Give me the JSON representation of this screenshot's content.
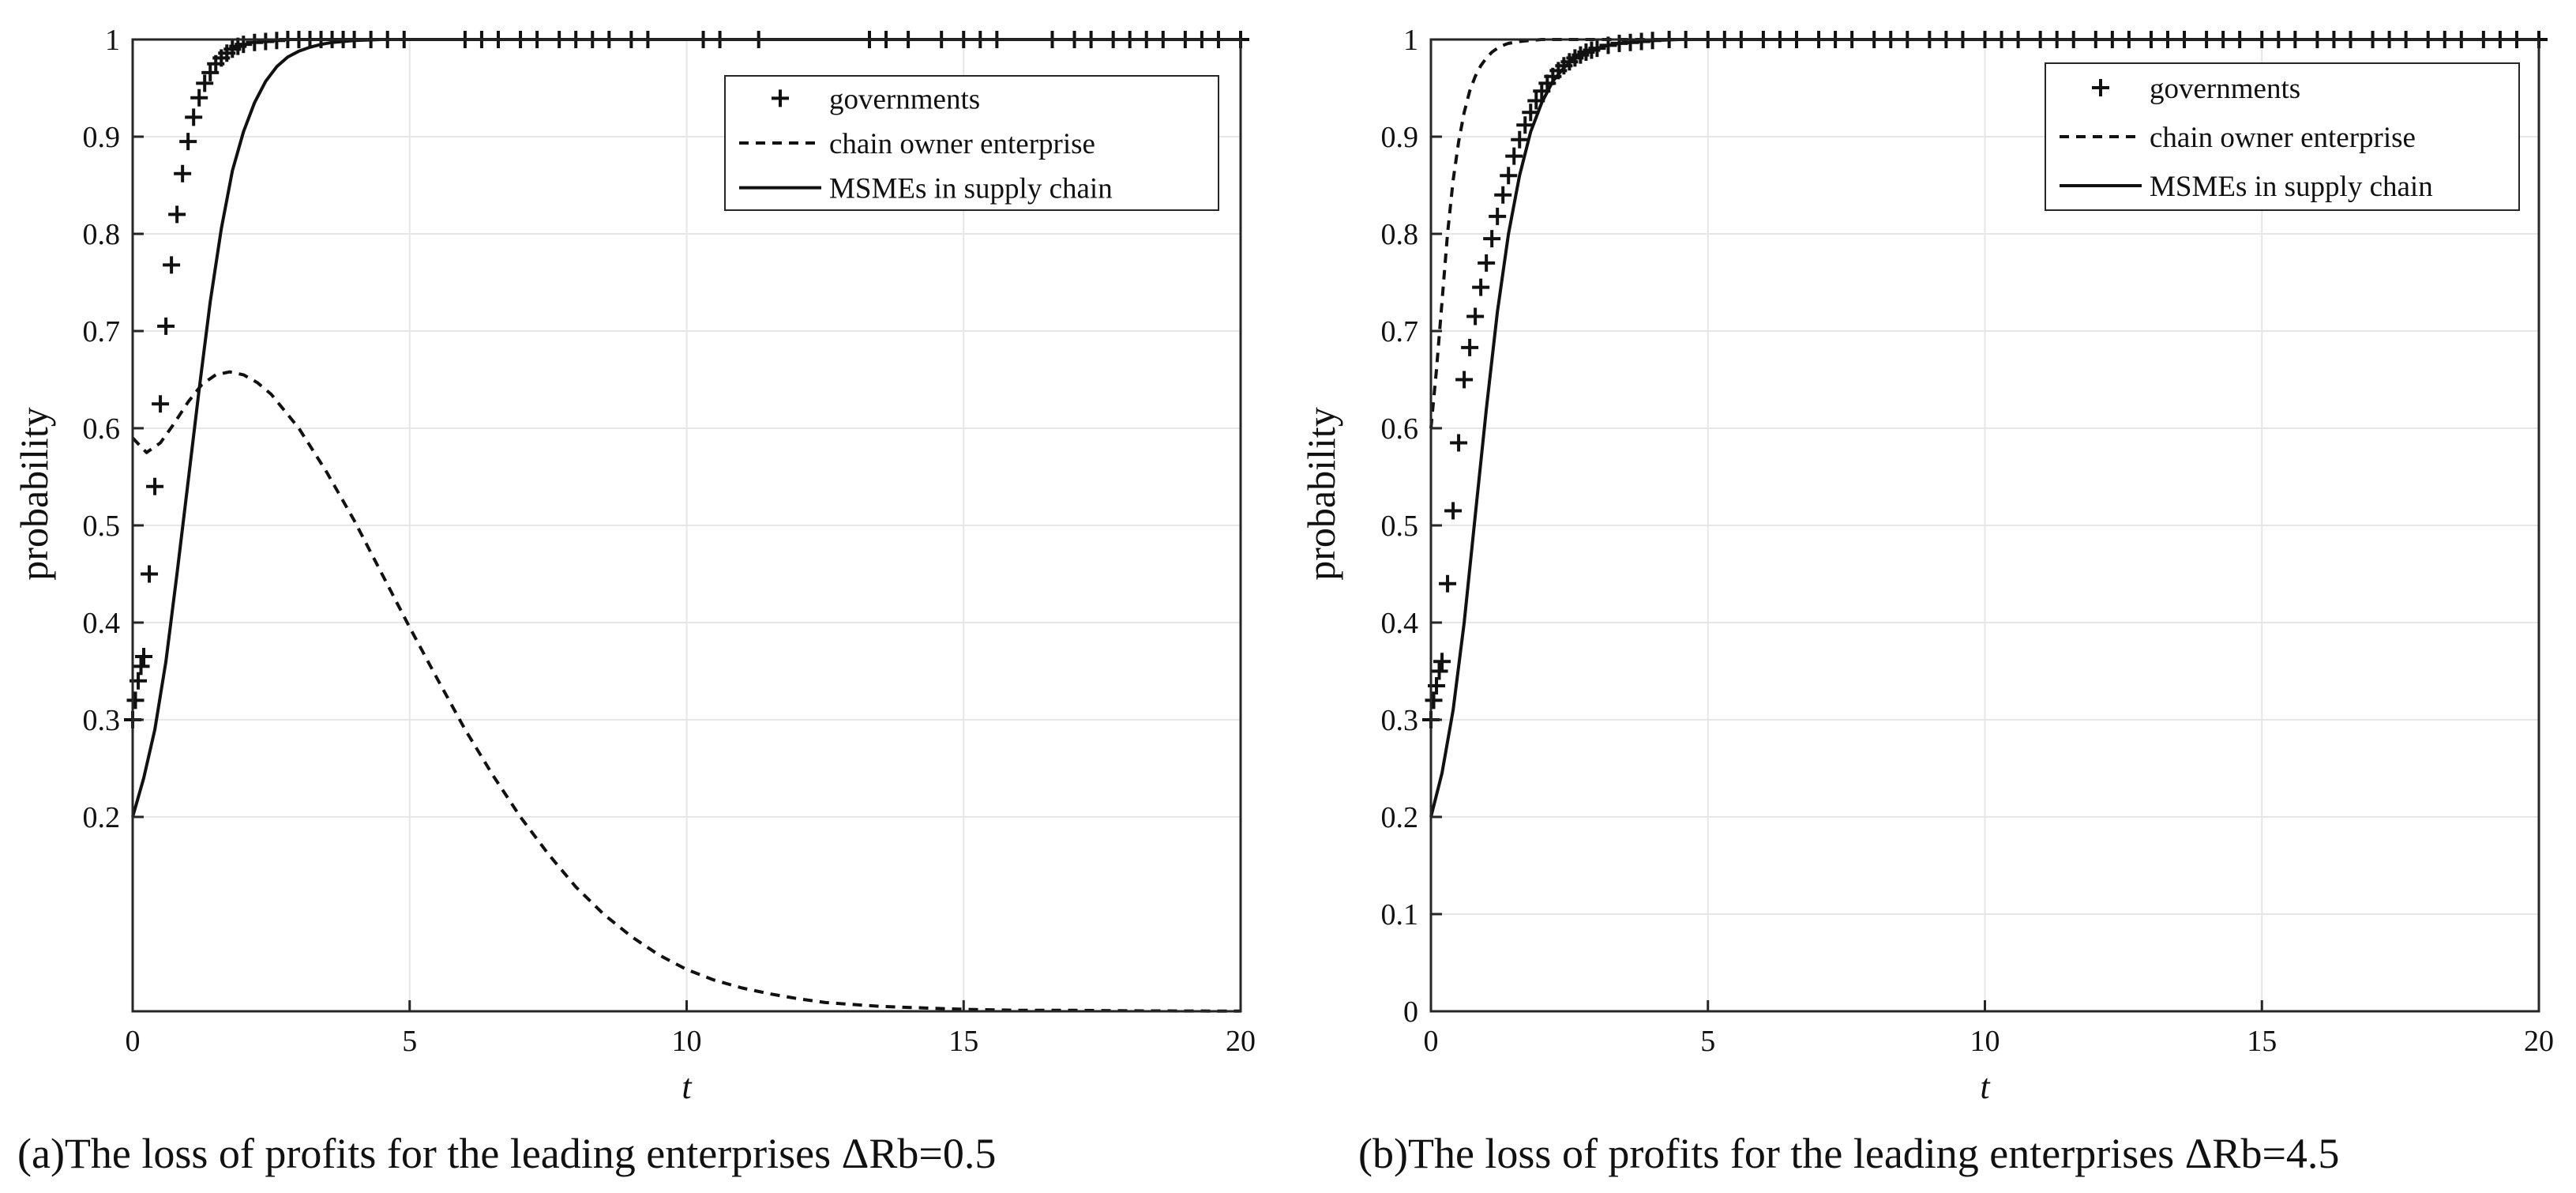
{
  "colors": {
    "line": "#111111",
    "grid": "#e6e6e6",
    "frame": "#262626",
    "background": "#ffffff"
  },
  "chart_data": [
    {
      "type": "line",
      "title": "(a)The loss of profits for the leading enterprises ΔRb=0.5",
      "xlabel": "t",
      "ylabel": "probability",
      "xlim": [
        0,
        20
      ],
      "ylim": [
        0,
        1
      ],
      "xticks": [
        "0",
        "5",
        "10",
        "15",
        "20"
      ],
      "yticks": [
        "0.2",
        "0.3",
        "0.4",
        "0.5",
        "0.6",
        "0.7",
        "0.8",
        "0.9",
        "1"
      ],
      "grid": true,
      "legend_position": "top-right",
      "series": [
        {
          "name": "governments",
          "style": "plus-markers",
          "x": [
            0,
            0.05,
            0.1,
            0.15,
            0.2,
            0.3,
            0.4,
            0.5,
            0.6,
            0.7,
            0.8,
            0.9,
            1.0,
            1.1,
            1.2,
            1.3,
            1.4,
            1.5,
            1.6,
            1.7,
            1.8,
            1.9,
            2.0,
            2.2,
            2.4,
            2.6,
            2.8,
            3.0,
            3.2,
            3.4,
            3.6,
            3.8,
            4.0,
            4.3,
            4.6,
            4.9,
            6.0,
            6.3,
            6.6,
            7.0,
            7.3,
            7.7,
            8.0,
            8.3,
            8.6,
            9.0,
            9.3,
            10.3,
            10.6,
            11.3,
            13.3,
            13.6,
            14.0,
            14.6,
            15.0,
            15.3,
            15.6,
            16.6,
            17.0,
            17.3,
            17.7,
            18.0,
            18.3,
            18.6,
            19.0,
            19.3,
            19.6,
            20.0
          ],
          "y": [
            0.3,
            0.32,
            0.34,
            0.355,
            0.365,
            0.45,
            0.54,
            0.625,
            0.705,
            0.768,
            0.82,
            0.862,
            0.895,
            0.92,
            0.94,
            0.955,
            0.966,
            0.975,
            0.981,
            0.986,
            0.99,
            0.993,
            0.995,
            0.997,
            0.998,
            0.999,
            1,
            1,
            1,
            1,
            1,
            1,
            1,
            1,
            1,
            1,
            1,
            1,
            1,
            1,
            1,
            1,
            1,
            1,
            1,
            1,
            1,
            1,
            1,
            1,
            1,
            1,
            1,
            1,
            1,
            1,
            1,
            1,
            1,
            1,
            1,
            1,
            1,
            1,
            1,
            1,
            1,
            1
          ]
        },
        {
          "name": "chain owner enterprise",
          "style": "dashed",
          "x": [
            0,
            0.25,
            0.5,
            0.75,
            1.0,
            1.25,
            1.5,
            1.75,
            2.0,
            2.25,
            2.5,
            3,
            3.5,
            4,
            4.5,
            5,
            5.5,
            6,
            6.5,
            7,
            7.5,
            8,
            8.5,
            9,
            9.5,
            10,
            10.5,
            11,
            11.5,
            12,
            12.5,
            13,
            13.5,
            14,
            15,
            16,
            17,
            18,
            19,
            20
          ],
          "y": [
            0.59,
            0.575,
            0.585,
            0.605,
            0.627,
            0.645,
            0.655,
            0.658,
            0.655,
            0.647,
            0.635,
            0.6,
            0.555,
            0.505,
            0.45,
            0.395,
            0.342,
            0.29,
            0.243,
            0.2,
            0.162,
            0.128,
            0.1,
            0.077,
            0.058,
            0.043,
            0.032,
            0.024,
            0.018,
            0.013,
            0.009,
            0.007,
            0.005,
            0.004,
            0.002,
            0.001,
            0.001,
            0.0005,
            0.0003,
            0.0002
          ]
        },
        {
          "name": "MSMEs  in supply chain",
          "style": "solid",
          "x": [
            0,
            0.2,
            0.4,
            0.6,
            0.8,
            1.0,
            1.2,
            1.4,
            1.6,
            1.8,
            2.0,
            2.2,
            2.4,
            2.6,
            2.8,
            3.0,
            3.2,
            3.4,
            3.6,
            3.8,
            4.0,
            4.5,
            5,
            6,
            8,
            10,
            15,
            20
          ],
          "y": [
            0.2,
            0.24,
            0.29,
            0.36,
            0.45,
            0.545,
            0.64,
            0.73,
            0.805,
            0.865,
            0.905,
            0.935,
            0.957,
            0.972,
            0.982,
            0.988,
            0.992,
            0.995,
            0.997,
            0.998,
            0.999,
            1,
            1,
            1,
            1,
            1,
            1,
            1
          ]
        }
      ]
    },
    {
      "type": "line",
      "title": "(b)The loss of profits for the leading enterprises ΔRb=4.5",
      "xlabel": "t",
      "ylabel": "probability",
      "xlim": [
        0,
        20
      ],
      "ylim": [
        0,
        1
      ],
      "xticks": [
        "0",
        "5",
        "10",
        "15",
        "20"
      ],
      "yticks": [
        "0",
        "0.1",
        "0.2",
        "0.3",
        "0.4",
        "0.5",
        "0.6",
        "0.7",
        "0.8",
        "0.9",
        "1"
      ],
      "grid": true,
      "legend_position": "top-right",
      "series": [
        {
          "name": "governments",
          "style": "plus-markers",
          "x": [
            0,
            0.05,
            0.1,
            0.15,
            0.2,
            0.3,
            0.4,
            0.5,
            0.6,
            0.7,
            0.8,
            0.9,
            1.0,
            1.1,
            1.2,
            1.3,
            1.4,
            1.5,
            1.6,
            1.7,
            1.8,
            1.9,
            2.0,
            2.1,
            2.2,
            2.3,
            2.4,
            2.5,
            2.6,
            2.7,
            2.8,
            2.9,
            3.0,
            3.2,
            3.4,
            3.6,
            3.8,
            4.0,
            4.3,
            4.6,
            5.0,
            5.3,
            5.6,
            6.0,
            6.3,
            6.6,
            7.0,
            7.3,
            7.6,
            8.0,
            8.3,
            8.6,
            9.0,
            9.3,
            9.6,
            10.0,
            10.3,
            10.6,
            11.0,
            11.3,
            11.6,
            12.0,
            12.3,
            12.6,
            13.0,
            13.3,
            13.6,
            14.0,
            14.3,
            14.6,
            15.0,
            15.3,
            15.6,
            16.0,
            16.3,
            16.6,
            17.0,
            17.3,
            17.6,
            18.0,
            18.3,
            18.6,
            19.0,
            19.3,
            19.6,
            20.0
          ],
          "y": [
            0.3,
            0.32,
            0.335,
            0.35,
            0.36,
            0.44,
            0.515,
            0.585,
            0.65,
            0.683,
            0.715,
            0.745,
            0.77,
            0.795,
            0.818,
            0.84,
            0.86,
            0.88,
            0.897,
            0.912,
            0.925,
            0.937,
            0.947,
            0.955,
            0.962,
            0.968,
            0.973,
            0.977,
            0.981,
            0.984,
            0.987,
            0.989,
            0.991,
            0.994,
            0.996,
            0.997,
            0.998,
            0.999,
            1,
            1,
            1,
            1,
            1,
            1,
            1,
            1,
            1,
            1,
            1,
            1,
            1,
            1,
            1,
            1,
            1,
            1,
            1,
            1,
            1,
            1,
            1,
            1,
            1,
            1,
            1,
            1,
            1,
            1,
            1,
            1,
            1,
            1,
            1,
            1,
            1,
            1,
            1,
            1,
            1,
            1,
            1,
            1,
            1,
            1,
            1,
            1
          ]
        },
        {
          "name": "chain owner enterprise",
          "style": "dashed",
          "x": [
            0,
            0.1,
            0.2,
            0.3,
            0.4,
            0.5,
            0.6,
            0.7,
            0.8,
            0.9,
            1.0,
            1.1,
            1.2,
            1.3,
            1.4,
            1.5,
            1.6,
            1.8,
            2.0,
            2.3,
            2.6,
            3.0,
            4,
            6,
            10,
            15,
            20
          ],
          "y": [
            0.6,
            0.66,
            0.73,
            0.8,
            0.855,
            0.895,
            0.925,
            0.947,
            0.962,
            0.973,
            0.981,
            0.987,
            0.991,
            0.994,
            0.996,
            0.997,
            0.998,
            0.999,
            1,
            1,
            1,
            1,
            1,
            1,
            1,
            1,
            1
          ]
        },
        {
          "name": "MSMEs  in supply chain",
          "style": "solid",
          "x": [
            0,
            0.2,
            0.4,
            0.6,
            0.8,
            1.0,
            1.2,
            1.4,
            1.6,
            1.8,
            2.0,
            2.2,
            2.4,
            2.6,
            2.8,
            3.0,
            3.2,
            3.4,
            3.6,
            3.8,
            4.0,
            4.5,
            5,
            6,
            8,
            10,
            15,
            20
          ],
          "y": [
            0.2,
            0.245,
            0.31,
            0.4,
            0.51,
            0.62,
            0.72,
            0.8,
            0.86,
            0.905,
            0.935,
            0.957,
            0.971,
            0.981,
            0.987,
            0.991,
            0.994,
            0.996,
            0.997,
            0.998,
            0.999,
            1,
            1,
            1,
            1,
            1,
            1,
            1
          ]
        }
      ]
    }
  ]
}
